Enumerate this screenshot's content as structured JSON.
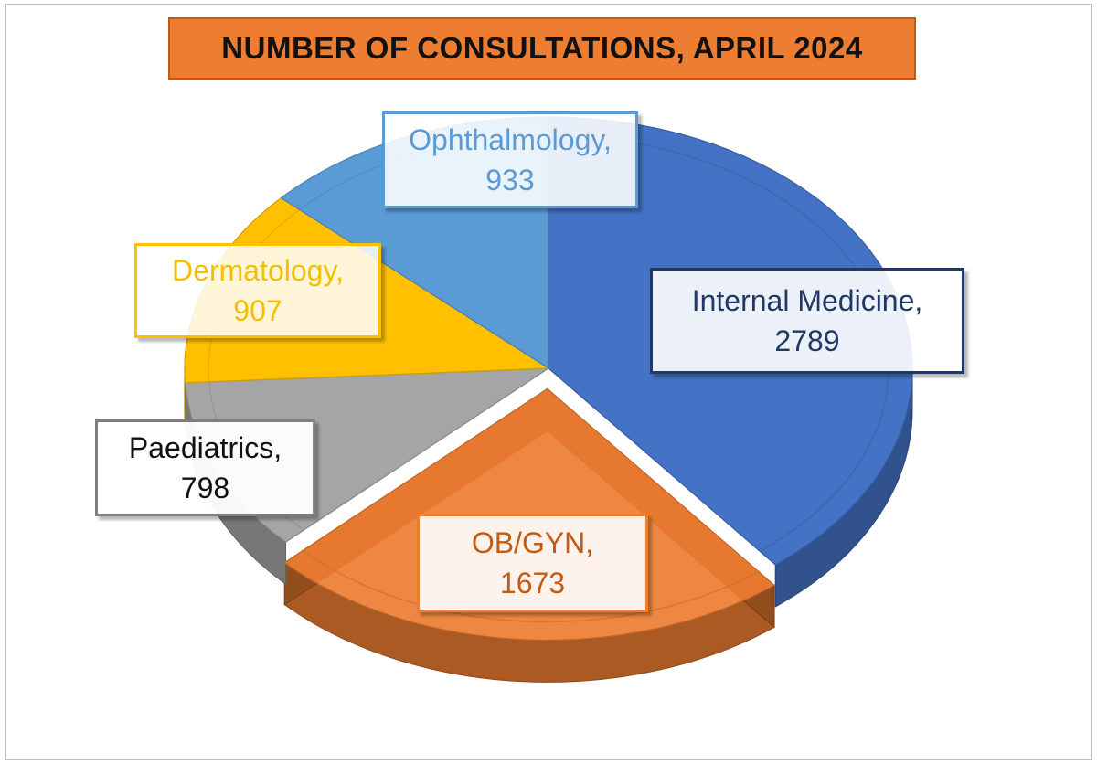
{
  "chart_data": {
    "type": "pie",
    "title": "NUMBER OF CONSULTATIONS, APRIL 2024",
    "categories": [
      "Internal Medicine",
      "OB/GYN",
      "Paediatrics",
      "Dermatology",
      "Ophthalmology"
    ],
    "values": [
      2789,
      1673,
      798,
      907,
      933
    ],
    "data_labels": [
      {
        "name": "Internal Medicine,",
        "value": "2789"
      },
      {
        "name": "OB/GYN,",
        "value": "1673"
      },
      {
        "name": "Paediatrics,",
        "value": "798"
      },
      {
        "name": "Dermatology,",
        "value": "907"
      },
      {
        "name": "Ophthalmology,",
        "value": "933"
      }
    ],
    "colors": [
      "#4472c4",
      "#ed7d31",
      "#a5a5a5",
      "#ffc000",
      "#5b9bd5"
    ],
    "style": "3d-exploded",
    "exploded_category": "OB/GYN",
    "legend": "none"
  }
}
